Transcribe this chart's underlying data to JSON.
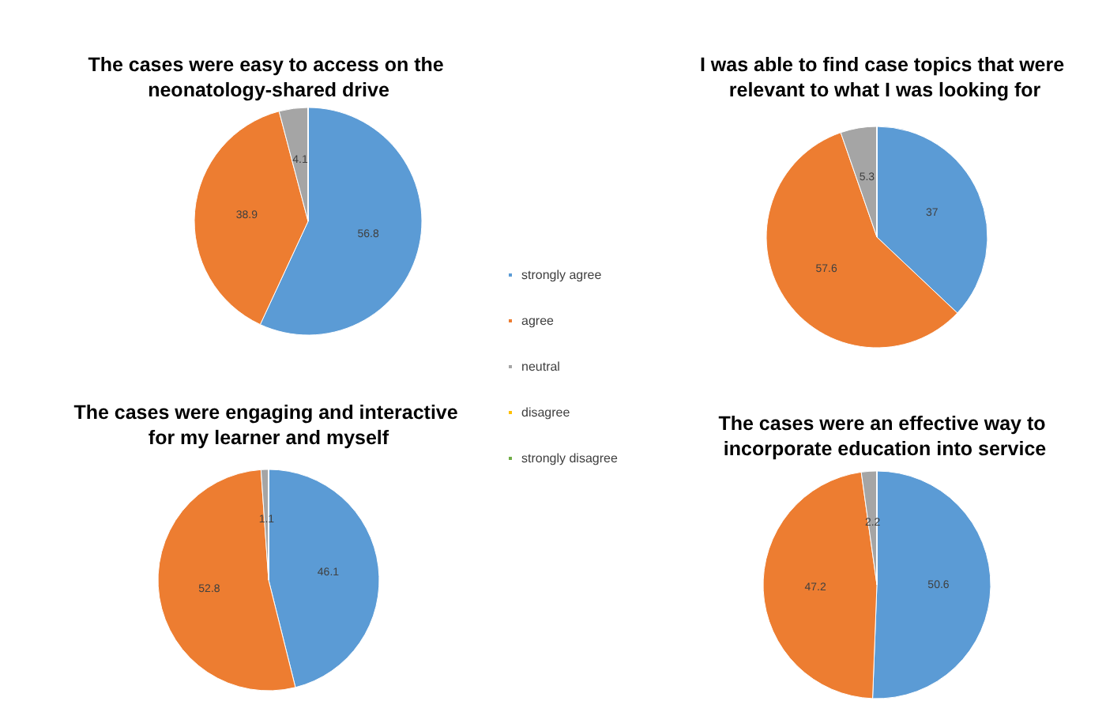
{
  "chart_data": [
    {
      "type": "pie",
      "title": "The cases were easy to access on the neonatology-shared drive",
      "categories": [
        "strongly agree",
        "agree",
        "neutral",
        "disagree",
        "strongly disagree"
      ],
      "values": [
        56.8,
        38.9,
        4.1,
        0,
        0
      ],
      "value_labels": [
        "56.8",
        "38.9",
        "4.1",
        null,
        null
      ],
      "colors": [
        "#5b9bd5",
        "#ed7d31",
        "#a5a5a5",
        "#ffc000",
        "#70ad47"
      ],
      "legend": "right"
    },
    {
      "type": "pie",
      "title": "I was able to find case topics that were relevant to what I was looking for",
      "values": [
        37,
        57.6,
        5.3,
        0,
        0
      ],
      "value_labels": [
        "37",
        "57.6",
        "5.3",
        null,
        null
      ],
      "colors": [
        "#5b9bd5",
        "#ed7d31",
        "#a5a5a5",
        "#ffc000",
        "#70ad47"
      ]
    },
    {
      "type": "pie",
      "title": "The cases were engaging and interactive for my learner and myself",
      "values": [
        46.1,
        52.8,
        1.1,
        0,
        0
      ],
      "value_labels": [
        "46.1",
        "52.8",
        "1.1",
        null,
        null
      ],
      "colors": [
        "#5b9bd5",
        "#ed7d31",
        "#a5a5a5",
        "#ffc000",
        "#70ad47"
      ]
    },
    {
      "type": "pie",
      "title": "The cases were an effective way to incorporate education into service",
      "values": [
        50.6,
        47.2,
        2.2,
        0,
        0
      ],
      "value_labels": [
        "50.6",
        "47.2",
        "2.2",
        null,
        null
      ],
      "colors": [
        "#5b9bd5",
        "#ed7d31",
        "#a5a5a5",
        "#ffc000",
        "#70ad47"
      ]
    }
  ]
}
